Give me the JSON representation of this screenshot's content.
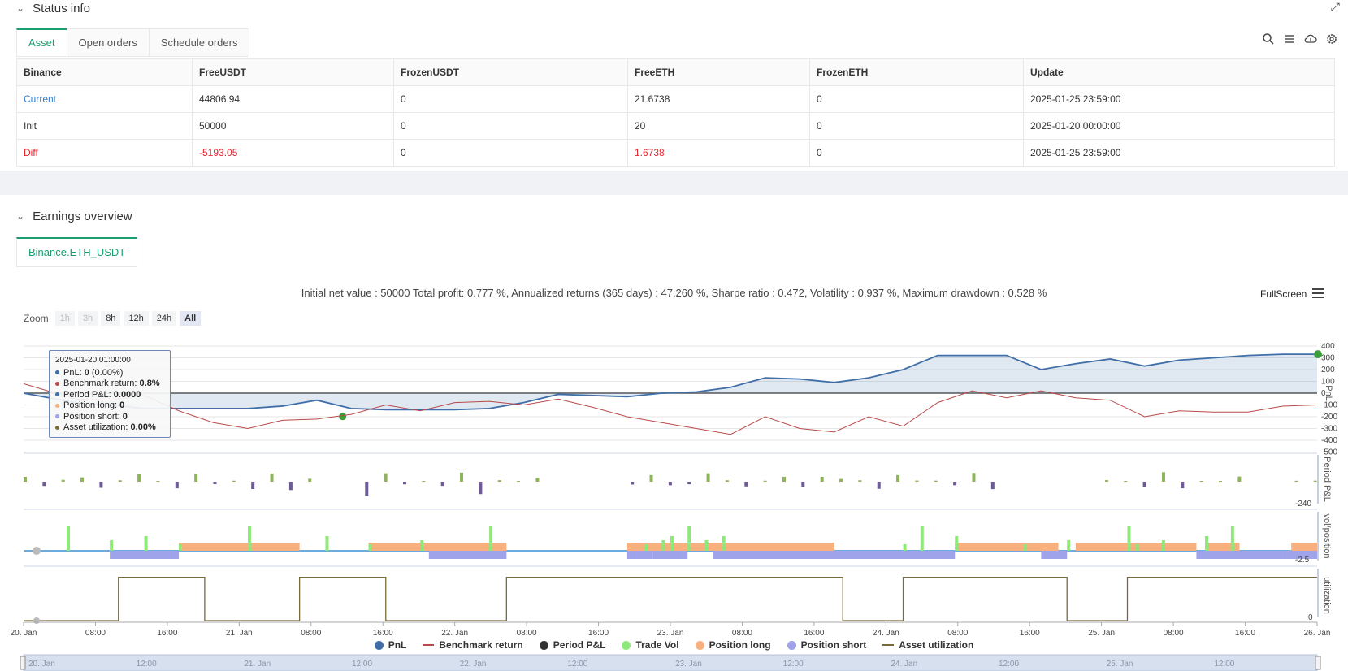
{
  "status": {
    "title": "Status info",
    "tabs": [
      {
        "label": "Asset"
      },
      {
        "label": "Open orders"
      },
      {
        "label": "Schedule orders"
      }
    ],
    "table": {
      "headers": [
        "Binance",
        "FreeUSDT",
        "FrozenUSDT",
        "FreeETH",
        "FrozenETH",
        "Update"
      ],
      "rows": [
        [
          "Current",
          "44806.94",
          "0",
          "21.6738",
          "0",
          "2025-01-25 23:59:00"
        ],
        [
          "Init",
          "50000",
          "0",
          "20",
          "0",
          "2025-01-20 00:00:00"
        ],
        [
          "Diff",
          "-5193.05",
          "0",
          "1.6738",
          "0",
          "2025-01-25 23:59:00"
        ]
      ]
    }
  },
  "earnings": {
    "title": "Earnings overview",
    "tab": "Binance.ETH_USDT",
    "summary": "Initial net value : 50000 Total profit: 0.777 %, Annualized returns (365 days) : 47.260 %, Sharpe ratio : 0.472, Volatility : 0.937 %, Maximum drawdown : 0.528 %",
    "fullscreen": "FullScreen",
    "zoom_label": "Zoom",
    "zoom_buttons": [
      "1h",
      "3h",
      "8h",
      "12h",
      "24h",
      "All"
    ],
    "tooltip": {
      "date": "2025-01-20 01:00:00",
      "pnl_label": "PnL: ",
      "pnl_value": "0",
      "pnl_extra": " (0.00%)",
      "bench_label": "Benchmark return: ",
      "bench_value": "0.8%",
      "period_label": "Period P&L: ",
      "period_value": "0.0000",
      "long_label": "Position long: ",
      "long_value": "0",
      "short_label": "Position short: ",
      "short_value": "0",
      "util_label": "Asset utilization: ",
      "util_value": "0.00%"
    },
    "legend": [
      "PnL",
      "Benchmark return",
      "Period P&L",
      "Trade Vol",
      "Position long",
      "Position short",
      "Asset utilization"
    ],
    "colors": {
      "pnl": "#3f6ea8",
      "benchmark": "#b84a4a",
      "period_pos": "#8fb35a",
      "period_neg": "#6e5a95",
      "trade_vol": "#8ee87a",
      "pos_long": "#f7b07e",
      "pos_short": "#9ea3ea",
      "util": "#7a6a3a"
    }
  },
  "chart_data": {
    "type": "line",
    "x_ticks": [
      "20. Jan",
      "08:00",
      "16:00",
      "21. Jan",
      "08:00",
      "16:00",
      "22. Jan",
      "08:00",
      "16:00",
      "23. Jan",
      "08:00",
      "16:00",
      "24. Jan",
      "08:00",
      "16:00",
      "25. Jan",
      "08:00",
      "16:00",
      "26. Jan"
    ],
    "navigator_ticks": [
      "20. Jan",
      "12:00",
      "21. Jan",
      "12:00",
      "22. Jan",
      "12:00",
      "23. Jan",
      "12:00",
      "24. Jan",
      "12:00",
      "25. Jan",
      "12:00"
    ],
    "panes": [
      {
        "ylabel": "PnL",
        "ylim": [
          -500,
          400
        ],
        "ticks": [
          "400",
          "300",
          "200",
          "100",
          "0",
          "-100",
          "-200",
          "-300",
          "-400",
          "-500"
        ]
      },
      {
        "ylabel": "Period P&L",
        "ticks": [
          "-240"
        ]
      },
      {
        "ylabel": "vol/position",
        "ticks": [
          "-2.5"
        ]
      },
      {
        "ylabel": "utilization",
        "ticks": [
          "0"
        ]
      }
    ],
    "series": [
      {
        "name": "PnL",
        "x_hours": [
          0,
          6,
          10,
          14,
          18,
          22,
          26,
          30,
          34,
          38,
          42,
          46,
          50,
          54,
          58,
          62,
          66,
          70,
          74,
          78,
          82,
          86,
          90,
          94,
          98,
          102,
          106,
          110,
          114,
          118,
          122,
          126,
          130,
          134,
          138,
          142,
          146,
          150
        ],
        "values": [
          0,
          -80,
          -100,
          -130,
          -130,
          -130,
          -130,
          -110,
          -60,
          -130,
          -140,
          -140,
          -140,
          -130,
          -80,
          -10,
          -20,
          -30,
          0,
          10,
          50,
          130,
          120,
          90,
          130,
          200,
          320,
          320,
          320,
          200,
          250,
          290,
          230,
          280,
          300,
          320,
          330,
          330
        ]
      },
      {
        "name": "Benchmark return",
        "x_hours": [
          0,
          6,
          10,
          14,
          18,
          22,
          26,
          30,
          34,
          38,
          42,
          46,
          50,
          54,
          58,
          62,
          66,
          70,
          74,
          78,
          82,
          86,
          90,
          94,
          98,
          102,
          106,
          110,
          114,
          118,
          122,
          126,
          130,
          134,
          138,
          142,
          146,
          150
        ],
        "values": [
          80,
          -50,
          -60,
          -20,
          -150,
          -250,
          -300,
          -230,
          -220,
          -180,
          -100,
          -150,
          -80,
          -70,
          -100,
          -50,
          -120,
          -200,
          -250,
          -300,
          -350,
          -200,
          -300,
          -330,
          -200,
          -280,
          -80,
          20,
          -40,
          20,
          -40,
          -60,
          -200,
          -150,
          -160,
          -160,
          -110,
          -100
        ]
      }
    ],
    "utilization_level": 0.92
  }
}
